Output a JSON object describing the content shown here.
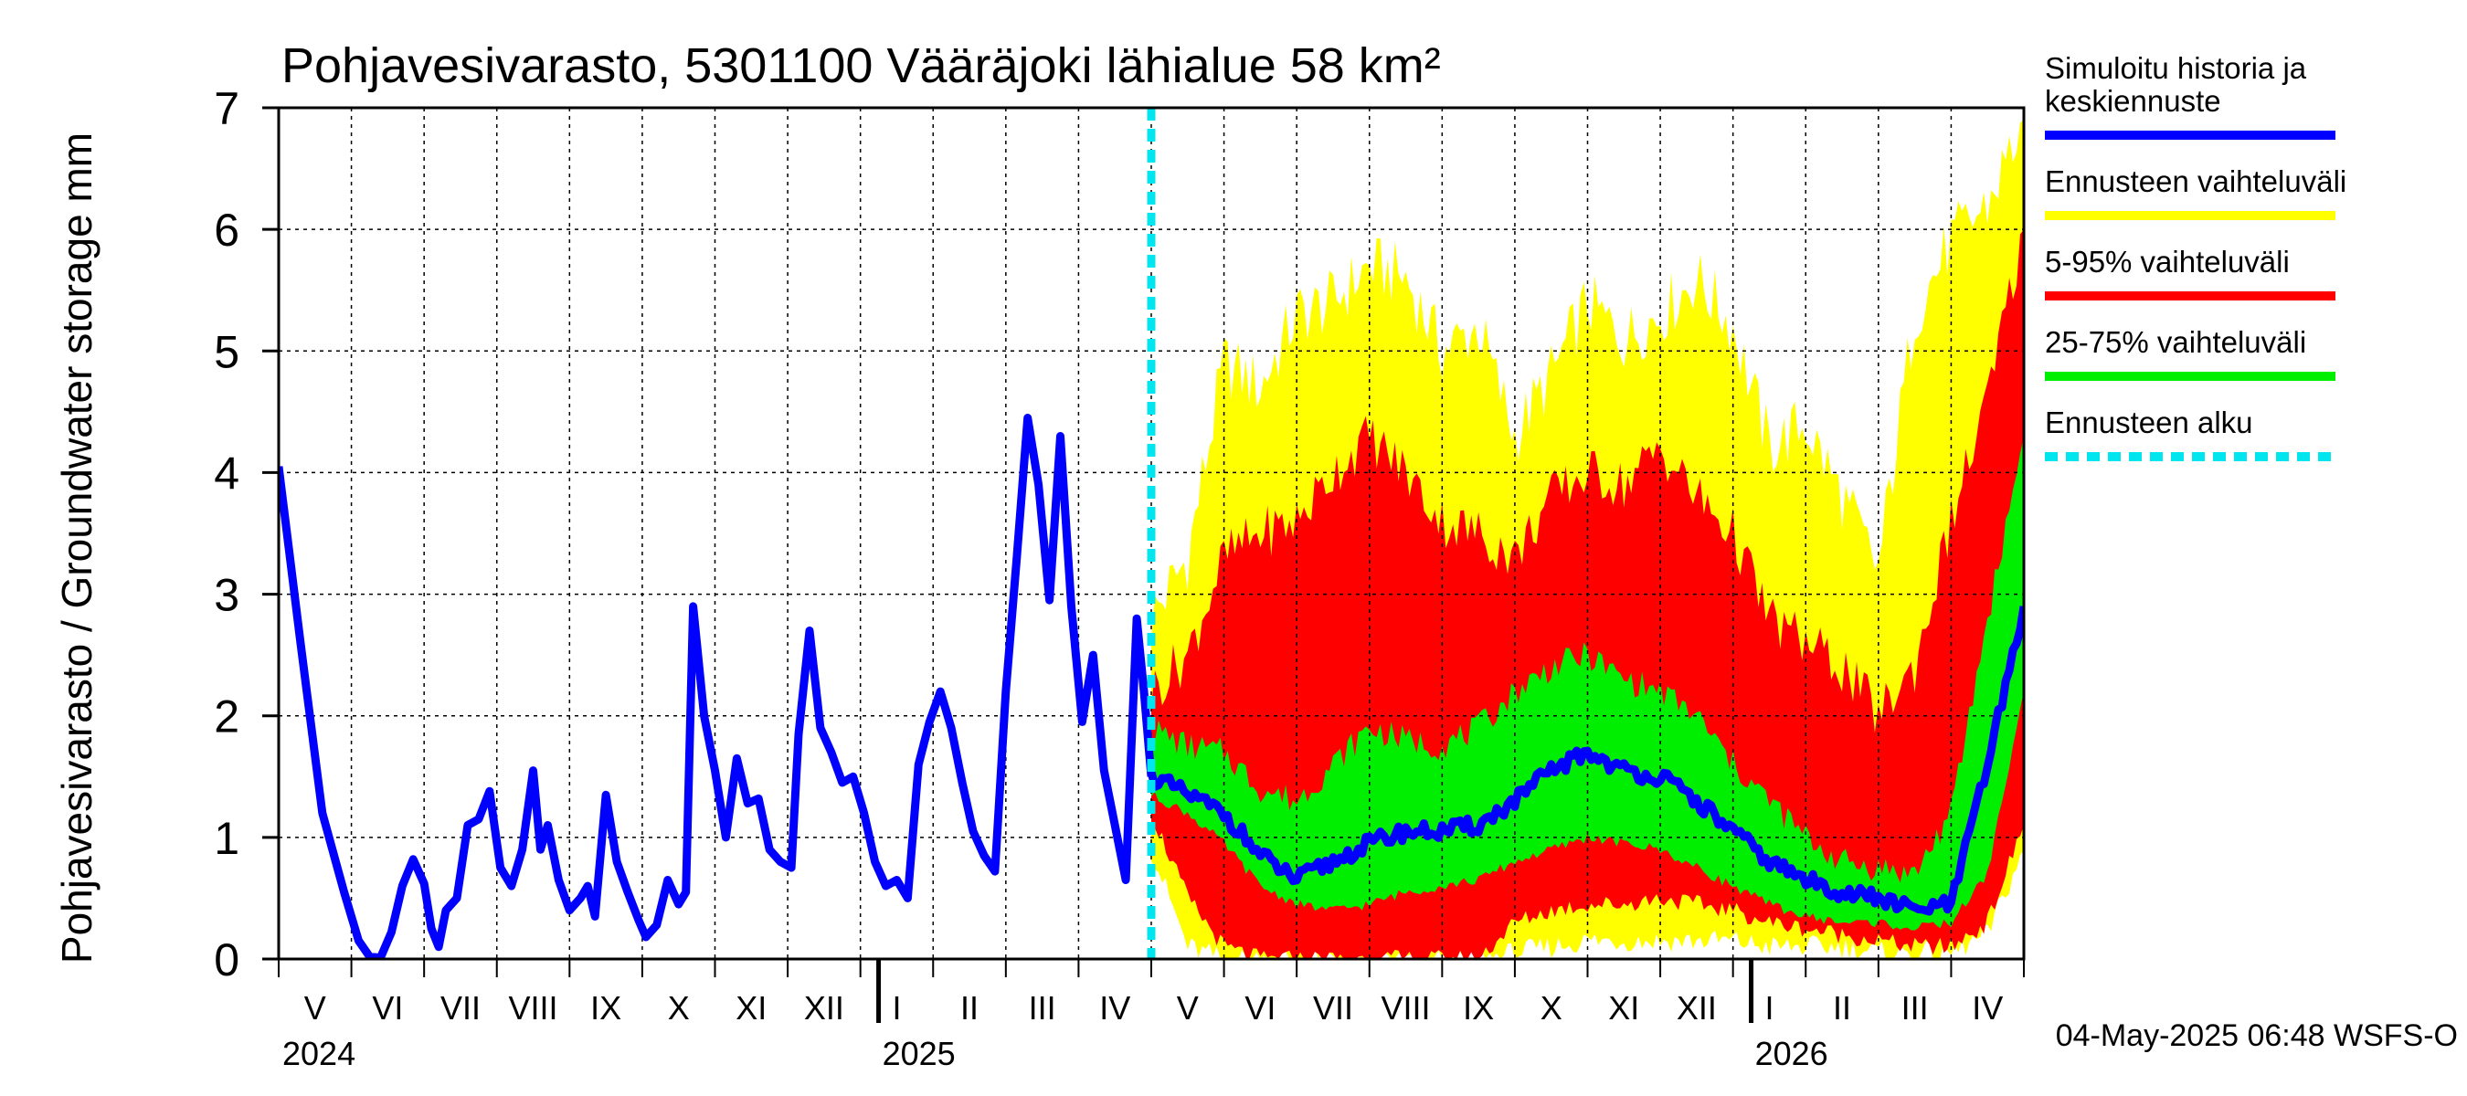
{
  "chart_data": {
    "type": "area",
    "title": "Pohjavesivarasto, 5301100 Vääräjoki lähialue 58 km²",
    "ylabel": "Pohjavesivarasto / Groundwater storage   mm",
    "xlabel": "",
    "ylim": [
      0,
      7
    ],
    "yticks": [
      "0",
      "1",
      "2",
      "3",
      "4",
      "5",
      "6",
      "7"
    ],
    "grid": true,
    "x_unit": "months since 2024-04-24",
    "xlim": [
      0,
      24.0
    ],
    "forecast_start": 12.0,
    "month_labels": [
      "V",
      "VI",
      "VII",
      "VIII",
      "IX",
      "X",
      "XI",
      "XII",
      "I",
      "II",
      "III",
      "IV",
      "V",
      "VI",
      "VII",
      "VIII",
      "IX",
      "X",
      "XI",
      "XII",
      "I",
      "II",
      "III",
      "IV"
    ],
    "year_labels": [
      {
        "label": "2024",
        "x": 0.0
      },
      {
        "label": "2025",
        "x": 8.25
      },
      {
        "label": "2026",
        "x": 20.25
      }
    ],
    "history": {
      "name": "Simuloitu historia ja keskiennuste",
      "x": [
        0,
        0.3,
        0.6,
        0.9,
        1.1,
        1.25,
        1.4,
        1.55,
        1.7,
        1.85,
        2.0,
        2.1,
        2.2,
        2.3,
        2.45,
        2.6,
        2.75,
        2.9,
        3.05,
        3.2,
        3.35,
        3.5,
        3.6,
        3.7,
        3.85,
        4.0,
        4.15,
        4.25,
        4.35,
        4.5,
        4.65,
        4.8,
        4.95,
        5.05,
        5.2,
        5.35,
        5.5,
        5.6,
        5.7,
        5.85,
        6.0,
        6.15,
        6.3,
        6.45,
        6.6,
        6.75,
        6.9,
        7.05,
        7.15,
        7.3,
        7.45,
        7.6,
        7.75,
        7.9,
        8.05,
        8.2,
        8.35,
        8.5,
        8.65,
        8.8,
        8.95,
        9.1,
        9.25,
        9.4,
        9.55,
        9.7,
        9.85,
        10.0,
        10.15,
        10.3,
        10.45,
        10.6,
        10.75,
        10.9,
        11.05,
        11.2,
        11.35,
        11.5,
        11.65,
        11.8,
        11.9,
        12.0
      ],
      "y": [
        4.05,
        2.6,
        1.2,
        0.55,
        0.15,
        0.02,
        0.01,
        0.22,
        0.6,
        0.82,
        0.62,
        0.25,
        0.1,
        0.4,
        0.5,
        1.1,
        1.15,
        1.38,
        0.75,
        0.6,
        0.9,
        1.55,
        0.9,
        1.1,
        0.65,
        0.4,
        0.5,
        0.6,
        0.35,
        1.35,
        0.8,
        0.55,
        0.32,
        0.18,
        0.28,
        0.65,
        0.45,
        0.55,
        2.9,
        2.0,
        1.55,
        1.0,
        1.65,
        1.28,
        1.32,
        0.9,
        0.8,
        0.75,
        1.85,
        2.7,
        1.9,
        1.7,
        1.45,
        1.5,
        1.2,
        0.8,
        0.6,
        0.65,
        0.5,
        1.6,
        1.95,
        2.2,
        1.9,
        1.45,
        1.05,
        0.85,
        0.72,
        2.2,
        3.3,
        4.45,
        3.9,
        2.95,
        4.3,
        2.9,
        1.95,
        2.5,
        1.55,
        1.1,
        0.65,
        2.8,
        2.2,
        1.5
      ],
      "color": "#0000ff"
    },
    "forecast_x": [
      12.0,
      12.5,
      13.0,
      13.5,
      14.0,
      14.5,
      15.0,
      15.5,
      16.0,
      16.5,
      17.0,
      17.5,
      18.0,
      18.5,
      19.0,
      19.5,
      20.0,
      20.5,
      21.0,
      21.5,
      22.0,
      22.5,
      23.0,
      23.5,
      24.0
    ],
    "series": [
      {
        "name": "Ennusteen vaihteluväli",
        "color": "#ffff00",
        "lower": [
          0.9,
          0.1,
          0.0,
          0.0,
          0.0,
          0.0,
          0.0,
          0.0,
          0.0,
          0.0,
          0.05,
          0.1,
          0.15,
          0.15,
          0.15,
          0.15,
          0.15,
          0.1,
          0.1,
          0.1,
          0.05,
          0.05,
          0.05,
          0.2,
          0.9
        ],
        "upper": [
          2.8,
          3.3,
          4.9,
          4.7,
          5.3,
          5.4,
          5.7,
          5.6,
          5.0,
          5.2,
          4.3,
          4.8,
          5.4,
          5.1,
          5.3,
          5.6,
          5.2,
          4.2,
          4.4,
          3.8,
          3.2,
          5.3,
          5.9,
          6.2,
          6.9
        ]
      },
      {
        "name": "5-95% vaihteluväli",
        "color": "#ff0000",
        "lower": [
          1.2,
          0.5,
          0.1,
          0.0,
          0.0,
          0.0,
          0.0,
          0.0,
          0.0,
          0.0,
          0.3,
          0.4,
          0.45,
          0.45,
          0.5,
          0.45,
          0.4,
          0.3,
          0.25,
          0.2,
          0.15,
          0.1,
          0.1,
          0.3,
          1.1
        ],
        "upper": [
          2.2,
          2.5,
          3.3,
          3.5,
          3.6,
          4.0,
          4.3,
          4.0,
          3.6,
          3.5,
          3.3,
          3.8,
          4.0,
          3.9,
          4.2,
          3.8,
          3.5,
          2.8,
          2.6,
          2.4,
          2.0,
          2.4,
          3.6,
          4.6,
          6.0
        ]
      },
      {
        "name": "25-75% vaihteluväli",
        "color": "#00ee00",
        "lower": [
          1.35,
          1.2,
          0.95,
          0.6,
          0.45,
          0.4,
          0.45,
          0.55,
          0.6,
          0.65,
          0.8,
          0.9,
          1.0,
          0.95,
          0.9,
          0.75,
          0.6,
          0.45,
          0.35,
          0.3,
          0.3,
          0.25,
          0.3,
          0.7,
          2.2
        ],
        "upper": [
          1.9,
          1.75,
          1.7,
          1.4,
          1.3,
          1.6,
          1.9,
          1.8,
          1.75,
          1.9,
          2.2,
          2.4,
          2.5,
          2.3,
          2.2,
          2.0,
          1.6,
          1.3,
          1.0,
          0.8,
          0.75,
          0.7,
          1.2,
          2.8,
          4.3
        ]
      },
      {
        "name": "Keskiennuste",
        "color": "#0000ff",
        "y": [
          1.5,
          1.35,
          1.2,
          0.85,
          0.65,
          0.8,
          0.95,
          1.05,
          1.05,
          1.1,
          1.3,
          1.55,
          1.7,
          1.55,
          1.5,
          1.3,
          1.05,
          0.8,
          0.65,
          0.55,
          0.5,
          0.4,
          0.45,
          1.6,
          2.9
        ]
      }
    ],
    "forecast_line_color": "#00e5ee",
    "legend": [
      {
        "lines": [
          "Simuloitu historia ja",
          "keskiennuste"
        ],
        "color": "#0000ff",
        "style": "solid"
      },
      {
        "lines": [
          "Ennusteen vaihteluväli"
        ],
        "color": "#ffff00",
        "style": "solid"
      },
      {
        "lines": [
          "5-95% vaihteluväli"
        ],
        "color": "#ff0000",
        "style": "solid"
      },
      {
        "lines": [
          "25-75% vaihteluväli"
        ],
        "color": "#00ee00",
        "style": "solid"
      },
      {
        "lines": [
          "Ennusteen alku"
        ],
        "color": "#00e5ee",
        "style": "dashed"
      }
    ],
    "legend_position": "right"
  },
  "footer": "04-May-2025 06:48 WSFS-O"
}
